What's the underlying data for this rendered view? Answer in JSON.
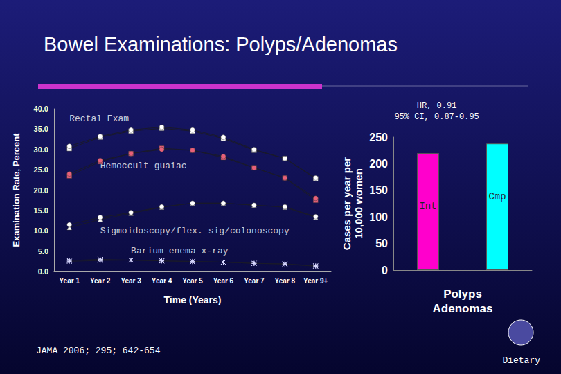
{
  "title": "Bowel Examinations: Polyps/Adenomas",
  "source": "JAMA 2006; 295; 642-654",
  "logo_text": "Dietary",
  "chart_data": [
    {
      "type": "line",
      "y_label": "Examination Rate, Percent",
      "x_label": "Time (Years)",
      "categories": [
        "Year 1",
        "Year 2",
        "Year 3",
        "Year 4",
        "Year 5",
        "Year 6",
        "Year 7",
        "Year 8",
        "Year 9+"
      ],
      "ylim": [
        0,
        40
      ],
      "yticks": [
        {
          "value": 0,
          "label": "0.0"
        },
        {
          "value": 5,
          "label": "5.0"
        },
        {
          "value": 10,
          "label": "10.0"
        },
        {
          "value": 15,
          "label": "15.0"
        },
        {
          "value": 20,
          "label": "20.0"
        },
        {
          "value": 25,
          "label": "25.0"
        },
        {
          "value": 30,
          "label": "30.0"
        },
        {
          "value": 35,
          "label": "35.0"
        },
        {
          "value": 40,
          "label": "40.0"
        }
      ],
      "grid": false,
      "series": [
        {
          "color": "#ffffff",
          "marker": "square",
          "values": [
            30.2,
            33.0,
            34.5,
            35.2,
            34.5,
            32.7,
            29.8,
            27.8,
            22.8
          ]
        },
        {
          "color": "#ffffff",
          "marker": "circle",
          "values": [
            30.8,
            33.2,
            34.8,
            35.5,
            34.8,
            33.0,
            30.0,
            27.8,
            23.0
          ]
        },
        {
          "color": "#e8607a",
          "marker": "square",
          "values": [
            23.5,
            27.0,
            29.0,
            30.3,
            29.8,
            28.0,
            25.5,
            23.0,
            17.5
          ]
        },
        {
          "color": "#e8607a",
          "marker": "circle",
          "values": [
            24.0,
            27.3,
            29.0,
            30.0,
            29.8,
            28.3,
            25.5,
            23.0,
            18.0
          ]
        },
        {
          "color": "#ffffff",
          "marker": "triangle",
          "values": [
            10.8,
            12.8,
            14.3,
            15.8,
            16.8,
            16.8,
            16.3,
            15.8,
            13.3
          ]
        },
        {
          "color": "#ffffff",
          "marker": "circle",
          "values": [
            11.5,
            13.3,
            14.5,
            15.9,
            16.8,
            16.8,
            16.3,
            15.9,
            13.5
          ]
        },
        {
          "color": "#d8d8ff",
          "marker": "asterisk",
          "values": [
            2.5,
            2.7,
            2.8,
            2.6,
            2.4,
            2.3,
            2.0,
            1.8,
            1.3
          ]
        },
        {
          "color": "#d8d8ff",
          "marker": "asterisk",
          "values": [
            2.7,
            3.0,
            2.8,
            2.6,
            2.5,
            2.3,
            2.0,
            1.9,
            1.4
          ]
        }
      ],
      "annotations": [
        {
          "text": "Rectal Exam",
          "x": "Year 1",
          "y": 37.5
        },
        {
          "text": "Hemoccult guaiac",
          "x": "Year 2",
          "y": 26.0
        },
        {
          "text": "Sigmoidoscopy/flex. sig/colonoscopy",
          "x": "Year 2",
          "y": 10.0
        },
        {
          "text": "Barium enema x-ray",
          "x": "Year 3",
          "y": 5.0
        }
      ]
    },
    {
      "type": "bar",
      "subtitle": "HR, 0.91\n95% CI, 0.87-0.95",
      "y_label": "Cases per year per\n10,000 women",
      "x_label": "Polyps\nAdenomas",
      "categories": [
        "Int",
        "Cmp"
      ],
      "values": [
        220,
        238
      ],
      "colors": [
        "#ff00cc",
        "#00ffff"
      ],
      "ylim": [
        0,
        250
      ],
      "yticks": [
        0,
        50,
        100,
        150,
        200,
        250
      ],
      "grid": false
    }
  ]
}
